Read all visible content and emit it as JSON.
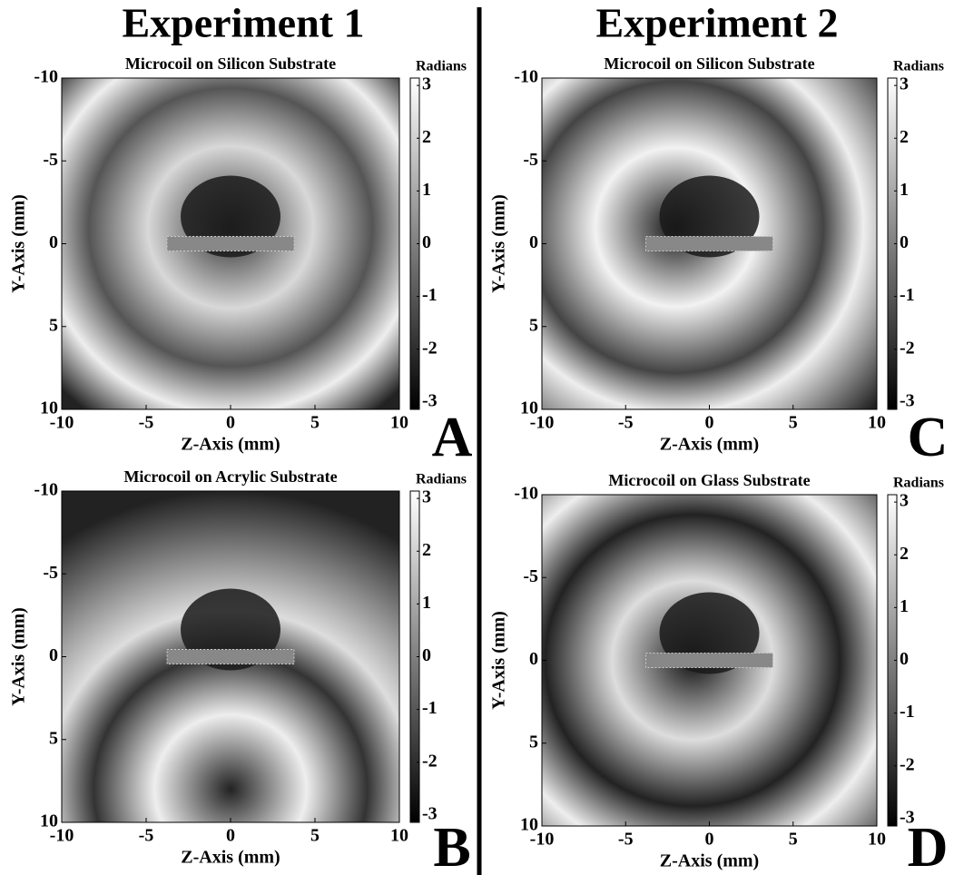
{
  "headers": [
    "Experiment 1",
    "Experiment 2"
  ],
  "chart_data": [
    {
      "type": "heatmap",
      "title": "Microcoil on Silicon Substrate",
      "panel_label": "A",
      "xlabel": "Z-Axis (mm)",
      "ylabel": "Y-Axis (mm)",
      "xlim": [
        -10,
        10
      ],
      "xticks": [
        -10,
        -5,
        0,
        5,
        10
      ],
      "ylim": [
        -10,
        10
      ],
      "yticks": [
        -10,
        -5,
        0,
        5,
        10
      ],
      "y_reversed": true,
      "colorbar_label": "Radians",
      "clim": [
        -3.14,
        3.14
      ],
      "cticks": [
        -3,
        -2,
        -1,
        0,
        1,
        2,
        3
      ]
    },
    {
      "type": "heatmap",
      "title": "Microcoil on Acrylic Substrate",
      "panel_label": "B",
      "xlabel": "Z-Axis (mm)",
      "ylabel": "Y-Axis (mm)",
      "xlim": [
        -10,
        10
      ],
      "xticks": [
        -10,
        -5,
        0,
        5,
        10
      ],
      "ylim": [
        -10,
        10
      ],
      "yticks": [
        -10,
        -5,
        0,
        5,
        10
      ],
      "y_reversed": true,
      "colorbar_label": "Radians",
      "clim": [
        -3.14,
        3.14
      ],
      "cticks": [
        -3,
        -2,
        -1,
        0,
        1,
        2,
        3
      ]
    },
    {
      "type": "heatmap",
      "title": "Microcoil on Silicon Substrate",
      "panel_label": "C",
      "xlabel": "Z-Axis (mm)",
      "ylabel": "Y-Axis (mm)",
      "xlim": [
        -10,
        10
      ],
      "xticks": [
        -10,
        -5,
        0,
        5,
        10
      ],
      "ylim": [
        -10,
        10
      ],
      "yticks": [
        -10,
        -5,
        0,
        5,
        10
      ],
      "y_reversed": true,
      "colorbar_label": "Radians",
      "clim": [
        -3.14,
        3.14
      ],
      "cticks": [
        -3,
        -2,
        -1,
        0,
        1,
        2,
        3
      ]
    },
    {
      "type": "heatmap",
      "title": "Microcoil on Glass Substrate",
      "panel_label": "D",
      "xlabel": "Z-Axis (mm)",
      "ylabel": "Y-Axis (mm)",
      "xlim": [
        -10,
        10
      ],
      "xticks": [
        -10,
        -5,
        0,
        5,
        10
      ],
      "ylim": [
        -10,
        10
      ],
      "yticks": [
        -10,
        -5,
        0,
        5,
        10
      ],
      "y_reversed": true,
      "colorbar_label": "Radians",
      "clim": [
        -3.14,
        3.14
      ],
      "cticks": [
        -3,
        -2,
        -1,
        0,
        1,
        2,
        3
      ]
    }
  ]
}
